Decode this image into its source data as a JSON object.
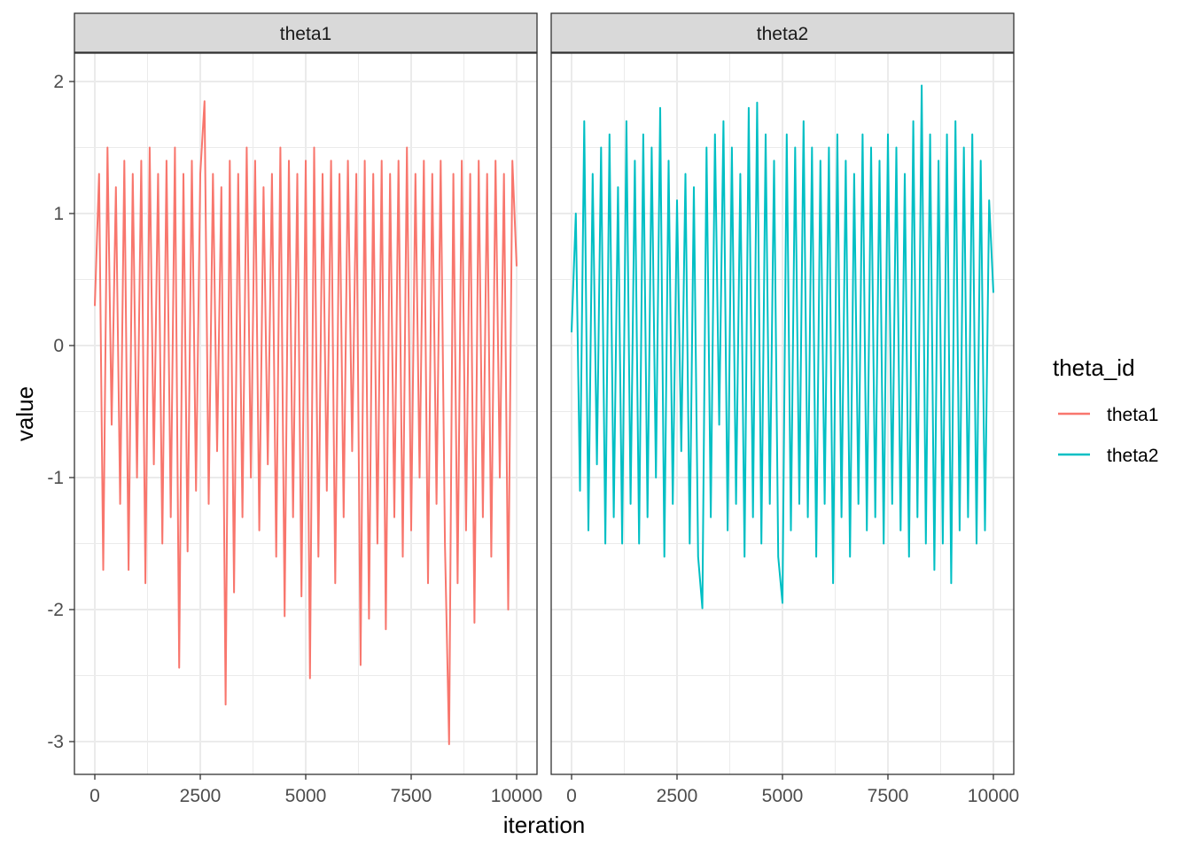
{
  "chart_data": {
    "type": "line",
    "facet_by": "theta_id",
    "xlabel": "iteration",
    "ylabel": "value",
    "xlim": [
      0,
      10000
    ],
    "ylim": [
      -3.2,
      2.2
    ],
    "x_ticks": [
      0,
      2500,
      5000,
      7500,
      10000
    ],
    "y_ticks": [
      -3,
      -2,
      -1,
      0,
      1,
      2
    ],
    "x_tick_labels": [
      "0",
      "2500",
      "5000",
      "7500",
      "10000"
    ],
    "y_tick_labels": [
      "-3",
      "-2",
      "-1",
      "0",
      "1",
      "2"
    ],
    "grid": true,
    "legend": {
      "title": "theta_id",
      "placement": "right",
      "entries": [
        "theta1",
        "theta2"
      ]
    },
    "x_step": 100,
    "note_sampling": "values sampled every 100 iterations",
    "series": [
      {
        "name": "theta1",
        "color": "#F8766D",
        "values": [
          0.3,
          1.3,
          -1.7,
          1.5,
          -0.6,
          1.2,
          -1.2,
          1.4,
          -1.7,
          1.3,
          -1.0,
          1.4,
          -1.8,
          1.5,
          -0.9,
          1.3,
          -1.5,
          1.4,
          -1.3,
          1.5,
          -2.44,
          1.3,
          -1.56,
          1.4,
          -1.1,
          1.3,
          1.85,
          -1.2,
          1.3,
          -0.8,
          1.2,
          -2.72,
          1.4,
          -1.87,
          1.3,
          -1.3,
          1.5,
          -1.0,
          1.4,
          -1.4,
          1.2,
          -0.9,
          1.3,
          -1.6,
          1.5,
          -2.05,
          1.4,
          -1.3,
          1.3,
          -1.9,
          1.4,
          -2.52,
          1.5,
          -1.6,
          1.3,
          -1.1,
          1.4,
          -1.8,
          1.3,
          -1.3,
          1.4,
          -0.8,
          1.3,
          -2.42,
          1.4,
          -2.07,
          1.3,
          -1.5,
          1.4,
          -2.15,
          1.3,
          -1.3,
          1.4,
          -1.6,
          1.5,
          -1.4,
          1.3,
          -1.0,
          1.4,
          -1.8,
          1.3,
          -1.2,
          1.4,
          -1.5,
          -3.02,
          1.3,
          -1.8,
          1.4,
          -1.4,
          1.3,
          -2.1,
          1.4,
          -1.3,
          1.3,
          -1.6,
          1.4,
          -1.0,
          1.3,
          -2.0,
          1.4,
          0.6
        ]
      },
      {
        "name": "theta2",
        "color": "#00BFC4",
        "values": [
          0.1,
          1.0,
          -1.1,
          1.7,
          -1.4,
          1.3,
          -0.9,
          1.5,
          -1.5,
          1.6,
          -1.3,
          1.2,
          -1.5,
          1.7,
          -1.2,
          1.4,
          -1.5,
          1.6,
          -1.3,
          1.5,
          -1.0,
          1.8,
          -1.6,
          1.4,
          -1.2,
          1.1,
          -0.8,
          1.3,
          -1.5,
          1.2,
          -1.6,
          -1.99,
          1.5,
          -1.3,
          1.6,
          -0.6,
          1.7,
          -1.4,
          1.5,
          -1.2,
          1.3,
          -1.6,
          1.8,
          -1.3,
          1.84,
          -1.5,
          1.6,
          -1.2,
          1.4,
          -1.6,
          -1.95,
          1.6,
          -1.4,
          1.5,
          -1.2,
          1.7,
          -1.3,
          1.5,
          -1.6,
          1.4,
          -1.2,
          1.5,
          -1.8,
          1.6,
          -1.3,
          1.4,
          -1.6,
          1.3,
          -1.2,
          1.6,
          -1.4,
          1.5,
          -1.3,
          1.4,
          -1.5,
          1.6,
          -1.2,
          1.5,
          -1.4,
          1.3,
          -1.6,
          1.7,
          -1.3,
          1.97,
          -1.5,
          1.6,
          -1.7,
          1.4,
          -1.5,
          1.6,
          -1.8,
          1.7,
          -1.4,
          1.5,
          -1.3,
          1.6,
          -1.5,
          1.4,
          -1.4,
          1.1,
          0.4
        ]
      }
    ]
  }
}
